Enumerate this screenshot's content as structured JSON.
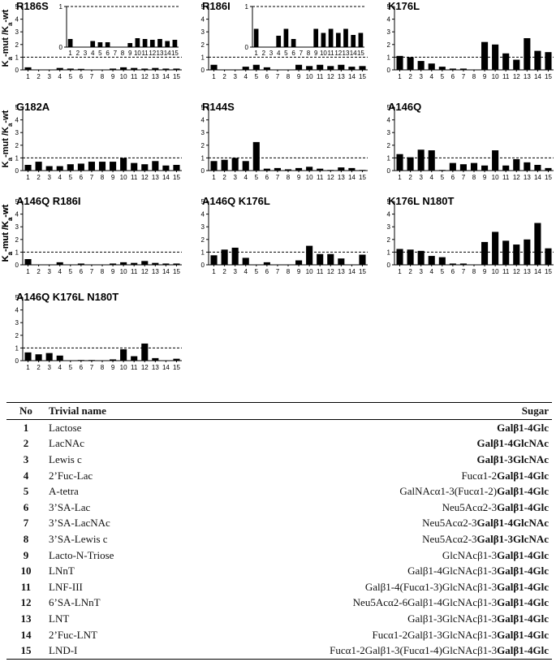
{
  "chart_data": [
    {
      "type": "bar",
      "title": "R186S",
      "ylabel": "Ka-mut /Ka-wt",
      "ylim": [
        0,
        5
      ],
      "ref_line": 1,
      "categories": [
        "1",
        "2",
        "3",
        "4",
        "5",
        "6",
        "7",
        "8",
        "9",
        "10",
        "11",
        "12",
        "13",
        "14",
        "15"
      ],
      "values": [
        0.2,
        0.0,
        0.0,
        0.15,
        0.1,
        0.08,
        0.0,
        0.0,
        0.1,
        0.2,
        0.15,
        0.1,
        0.15,
        0.1,
        0.1
      ],
      "inset": {
        "ylim": [
          0,
          1
        ],
        "values": [
          0.2,
          0.0,
          0.0,
          0.15,
          0.12,
          0.12,
          0.0,
          0.0,
          0.1,
          0.22,
          0.2,
          0.18,
          0.2,
          0.15,
          0.18
        ]
      }
    },
    {
      "type": "bar",
      "title": "R186I",
      "ylabel": "",
      "ylim": [
        0,
        5
      ],
      "ref_line": 1,
      "categories": [
        "1",
        "2",
        "3",
        "4",
        "5",
        "6",
        "7",
        "8",
        "9",
        "10",
        "11",
        "12",
        "13",
        "14",
        "15"
      ],
      "values": [
        0.4,
        0.0,
        0.0,
        0.25,
        0.4,
        0.2,
        0.0,
        0.0,
        0.4,
        0.3,
        0.4,
        0.3,
        0.4,
        0.25,
        0.3
      ],
      "inset": {
        "ylim": [
          0,
          1
        ],
        "values": [
          0.45,
          0.0,
          0.0,
          0.28,
          0.45,
          0.2,
          0.0,
          0.0,
          0.45,
          0.35,
          0.45,
          0.35,
          0.45,
          0.3,
          0.35
        ]
      }
    },
    {
      "type": "bar",
      "title": "K176L",
      "ylabel": "",
      "ylim": [
        0,
        5
      ],
      "ref_line": 1,
      "categories": [
        "1",
        "2",
        "3",
        "4",
        "5",
        "6",
        "7",
        "8",
        "9",
        "10",
        "11",
        "12",
        "13",
        "14",
        "15"
      ],
      "values": [
        1.1,
        1.0,
        0.7,
        0.5,
        0.25,
        0.1,
        0.1,
        0.0,
        2.2,
        2.0,
        1.3,
        0.8,
        2.5,
        1.5,
        1.4
      ]
    },
    {
      "type": "bar",
      "title": "G182A",
      "ylabel": "Ka-mut /Ka-wt",
      "ylim": [
        0,
        5
      ],
      "ref_line": 1,
      "categories": [
        "1",
        "2",
        "3",
        "4",
        "5",
        "6",
        "7",
        "8",
        "9",
        "10",
        "11",
        "12",
        "13",
        "14",
        "15"
      ],
      "values": [
        0.45,
        0.7,
        0.35,
        0.35,
        0.5,
        0.55,
        0.7,
        0.7,
        0.7,
        1.0,
        0.6,
        0.5,
        0.75,
        0.4,
        0.45
      ]
    },
    {
      "type": "bar",
      "title": "R144S",
      "ylabel": "",
      "ylim": [
        0,
        5
      ],
      "ref_line": 1,
      "categories": [
        "1",
        "2",
        "3",
        "4",
        "5",
        "6",
        "7",
        "8",
        "9",
        "10",
        "11",
        "12",
        "13",
        "14",
        "15"
      ],
      "values": [
        0.75,
        0.85,
        1.0,
        0.75,
        2.25,
        0.15,
        0.2,
        0.1,
        0.2,
        0.3,
        0.15,
        0.05,
        0.25,
        0.2,
        0.05
      ]
    },
    {
      "type": "bar",
      "title": "A146Q",
      "ylabel": "",
      "ylim": [
        0,
        5
      ],
      "ref_line": 1,
      "categories": [
        "1",
        "2",
        "3",
        "4",
        "5",
        "6",
        "7",
        "8",
        "9",
        "10",
        "11",
        "12",
        "13",
        "14",
        "15"
      ],
      "values": [
        1.3,
        1.05,
        1.65,
        1.6,
        0.05,
        0.6,
        0.5,
        0.6,
        0.4,
        1.6,
        0.4,
        0.9,
        0.65,
        0.45,
        0.2
      ]
    },
    {
      "type": "bar",
      "title": "A146Q R186I",
      "ylabel": "Ka-mut /Ka-wt",
      "ylim": [
        0,
        5
      ],
      "ref_line": 1,
      "categories": [
        "1",
        "2",
        "3",
        "4",
        "5",
        "6",
        "7",
        "8",
        "9",
        "10",
        "11",
        "12",
        "13",
        "14",
        "15"
      ],
      "values": [
        0.45,
        0.0,
        0.0,
        0.2,
        0.0,
        0.1,
        0.0,
        0.0,
        0.1,
        0.2,
        0.15,
        0.3,
        0.15,
        0.1,
        0.1
      ]
    },
    {
      "type": "bar",
      "title": "A146Q K176L",
      "ylabel": "",
      "ylim": [
        0,
        5
      ],
      "ref_line": 1,
      "categories": [
        "1",
        "2",
        "3",
        "4",
        "5",
        "6",
        "7",
        "8",
        "9",
        "10",
        "11",
        "12",
        "13",
        "14",
        "15"
      ],
      "values": [
        0.75,
        1.2,
        1.35,
        0.55,
        0.0,
        0.2,
        0.0,
        0.0,
        0.35,
        1.5,
        0.85,
        0.85,
        0.5,
        0.0,
        0.8
      ]
    },
    {
      "type": "bar",
      "title": "K176L N180T",
      "ylabel": "Ka-mut /Ka-wt",
      "ylim": [
        0,
        5
      ],
      "ref_line": 1,
      "categories": [
        "1",
        "2",
        "3",
        "4",
        "5",
        "6",
        "7",
        "8",
        "9",
        "10",
        "11",
        "12",
        "13",
        "14",
        "15"
      ],
      "values": [
        1.25,
        1.2,
        1.1,
        0.7,
        0.6,
        0.1,
        0.1,
        0.0,
        1.8,
        2.6,
        1.9,
        1.6,
        2.0,
        3.3,
        1.3
      ]
    },
    {
      "type": "bar",
      "title": "A146Q K176L N180T",
      "ylabel": "",
      "ylim": [
        0,
        5
      ],
      "ref_line": 1,
      "categories": [
        "1",
        "2",
        "3",
        "4",
        "5",
        "6",
        "7",
        "8",
        "9",
        "10",
        "11",
        "12",
        "13",
        "14",
        "15"
      ],
      "values": [
        0.65,
        0.5,
        0.6,
        0.4,
        0.0,
        0.05,
        0.05,
        0.0,
        0.1,
        0.9,
        0.35,
        1.35,
        0.2,
        0.0,
        0.15
      ]
    }
  ],
  "table": {
    "headers": {
      "no": "No",
      "name": "Trivial name",
      "sugar": "Sugar"
    },
    "rows": [
      {
        "no": "1",
        "name": "Lactose",
        "prefix": "",
        "core": "Galβ1-4Glc"
      },
      {
        "no": "2",
        "name": "LacNAc",
        "prefix": "",
        "core": "Galβ1-4GlcNAc"
      },
      {
        "no": "3",
        "name": "Lewis c",
        "prefix": "",
        "core": "Galβ1-3GlcNAc"
      },
      {
        "no": "4",
        "name": "2’Fuc-Lac",
        "prefix": "Fucα1-2",
        "core": "Galβ1-4Glc"
      },
      {
        "no": "5",
        "name": "A-tetra",
        "prefix": "GalNAcα1-3(Fucα1-2)",
        "core": "Galβ1-4Glc"
      },
      {
        "no": "6",
        "name": "3’SA-Lac",
        "prefix": "Neu5Acα2-3",
        "core": "Galβ1-4Glc"
      },
      {
        "no": "7",
        "name": "3’SA-LacNAc",
        "prefix": "Neu5Acα2-3",
        "core": "Galβ1-4GlcNAc"
      },
      {
        "no": "8",
        "name": "3’SA-Lewis c",
        "prefix": "Neu5Acα2-3",
        "core": "Galβ1-3GlcNAc"
      },
      {
        "no": "9",
        "name": "Lacto-N-Triose",
        "prefix": "GlcNAcβ1-3",
        "core": "Galβ1-4Glc"
      },
      {
        "no": "10",
        "name": "LNnT",
        "prefix": "Galβ1-4GlcNAcβ1-3",
        "core": "Galβ1-4Glc"
      },
      {
        "no": "11",
        "name": "LNF-III",
        "prefix": "Galβ1-4(Fucα1-3)GlcNAcβ1-3",
        "core": "Galβ1-4Glc"
      },
      {
        "no": "12",
        "name": "6’SA-LNnT",
        "prefix": "Neu5Acα2-6Galβ1-4GlcNAcβ1-3",
        "core": "Galβ1-4Glc"
      },
      {
        "no": "13",
        "name": "LNT",
        "prefix": "Galβ1-3GlcNAcβ1-3",
        "core": "Galβ1-4Glc"
      },
      {
        "no": "14",
        "name": "2’Fuc-LNT",
        "prefix": "Fucα1-2Galβ1-3GlcNAcβ1-3",
        "core": "Galβ1-4Glc"
      },
      {
        "no": "15",
        "name": "LND-I",
        "prefix": "Fucα1-2Galβ1-3(Fucα1-4)GlcNAcβ1-3",
        "core": "Galβ1-4Glc"
      }
    ]
  }
}
